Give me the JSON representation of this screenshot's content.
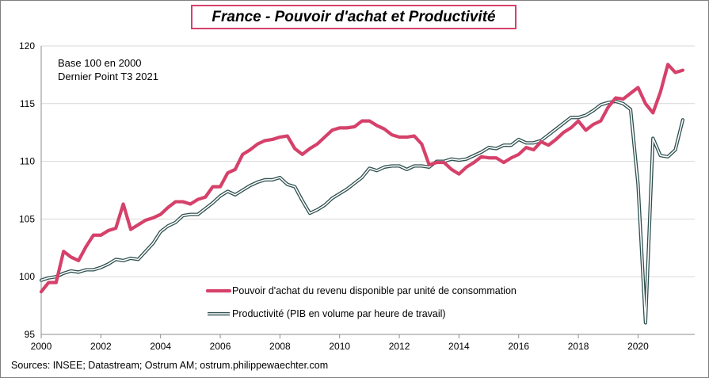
{
  "title": "France - Pouvoir d'achat et Productivité",
  "source_text": "Sources: INSEE; Datastream; Ostrum AM; ostrum.philippewaechter.com",
  "chart_data": {
    "type": "line",
    "annotations": [
      "Base 100 en 2000",
      "Dernier Point T3 2021"
    ],
    "xlim": [
      2000,
      2021.9
    ],
    "ylim": [
      95,
      120
    ],
    "x_ticks": [
      "2000",
      "2002",
      "2004",
      "2006",
      "2008",
      "2010",
      "2012",
      "2014",
      "2016",
      "2018",
      "2020"
    ],
    "y_ticks": [
      "95",
      "100",
      "105",
      "110",
      "115",
      "120"
    ],
    "grid": "horizontal",
    "legend_position": "lower-center",
    "series": [
      {
        "name": "Pouvoir d'achat du revenu disponible par unité de consommation",
        "color": "#d5416a",
        "style": "thick",
        "x": [
          2000.0,
          2000.25,
          2000.5,
          2000.75,
          2001.0,
          2001.25,
          2001.5,
          2001.75,
          2002.0,
          2002.25,
          2002.5,
          2002.75,
          2003.0,
          2003.25,
          2003.5,
          2003.75,
          2004.0,
          2004.25,
          2004.5,
          2004.75,
          2005.0,
          2005.25,
          2005.5,
          2005.75,
          2006.0,
          2006.25,
          2006.5,
          2006.75,
          2007.0,
          2007.25,
          2007.5,
          2007.75,
          2008.0,
          2008.25,
          2008.5,
          2008.75,
          2009.0,
          2009.25,
          2009.5,
          2009.75,
          2010.0,
          2010.25,
          2010.5,
          2010.75,
          2011.0,
          2011.25,
          2011.5,
          2011.75,
          2012.0,
          2012.25,
          2012.5,
          2012.75,
          2013.0,
          2013.25,
          2013.5,
          2013.75,
          2014.0,
          2014.25,
          2014.5,
          2014.75,
          2015.0,
          2015.25,
          2015.5,
          2015.75,
          2016.0,
          2016.25,
          2016.5,
          2016.75,
          2017.0,
          2017.25,
          2017.5,
          2017.75,
          2018.0,
          2018.25,
          2018.5,
          2018.75,
          2019.0,
          2019.25,
          2019.5,
          2019.75,
          2020.0,
          2020.25,
          2020.5,
          2020.75,
          2021.0,
          2021.25,
          2021.5
        ],
        "y": [
          98.7,
          99.5,
          99.5,
          102.2,
          101.7,
          101.4,
          102.6,
          103.6,
          103.6,
          104.0,
          104.2,
          106.3,
          104.1,
          104.5,
          104.9,
          105.1,
          105.4,
          106.0,
          106.5,
          106.5,
          106.3,
          106.7,
          106.9,
          107.8,
          107.8,
          109.0,
          109.3,
          110.6,
          111.0,
          111.5,
          111.8,
          111.9,
          112.1,
          112.2,
          111.1,
          110.6,
          111.1,
          111.5,
          112.1,
          112.7,
          112.9,
          112.9,
          113.0,
          113.5,
          113.5,
          113.1,
          112.8,
          112.3,
          112.1,
          112.1,
          112.2,
          111.5,
          109.7,
          109.9,
          109.9,
          109.3,
          108.9,
          109.5,
          109.9,
          110.4,
          110.3,
          110.3,
          109.9,
          110.3,
          110.6,
          111.2,
          111.0,
          111.7,
          111.4,
          111.9,
          112.5,
          112.9,
          113.5,
          112.7,
          113.2,
          113.5,
          114.7,
          115.5,
          115.4,
          115.9,
          116.4,
          115.0,
          114.2,
          116.0,
          118.4,
          117.7,
          117.9
        ]
      },
      {
        "name": "Productivité (PIB en volume par heure de travail)",
        "color": "#2f4f4f",
        "style": "outlined",
        "x": [
          2000.0,
          2000.25,
          2000.5,
          2000.75,
          2001.0,
          2001.25,
          2001.5,
          2001.75,
          2002.0,
          2002.25,
          2002.5,
          2002.75,
          2003.0,
          2003.25,
          2003.5,
          2003.75,
          2004.0,
          2004.25,
          2004.5,
          2004.75,
          2005.0,
          2005.25,
          2005.5,
          2005.75,
          2006.0,
          2006.25,
          2006.5,
          2006.75,
          2007.0,
          2007.25,
          2007.5,
          2007.75,
          2008.0,
          2008.25,
          2008.5,
          2008.75,
          2009.0,
          2009.25,
          2009.5,
          2009.75,
          2010.0,
          2010.25,
          2010.5,
          2010.75,
          2011.0,
          2011.25,
          2011.5,
          2011.75,
          2012.0,
          2012.25,
          2012.5,
          2012.75,
          2013.0,
          2013.25,
          2013.5,
          2013.75,
          2014.0,
          2014.25,
          2014.5,
          2014.75,
          2015.0,
          2015.25,
          2015.5,
          2015.75,
          2016.0,
          2016.25,
          2016.5,
          2016.75,
          2017.0,
          2017.25,
          2017.5,
          2017.75,
          2018.0,
          2018.25,
          2018.5,
          2018.75,
          2019.0,
          2019.25,
          2019.5,
          2019.75,
          2020.0,
          2020.25,
          2020.5,
          2020.75,
          2021.0,
          2021.25,
          2021.5
        ],
        "y": [
          99.7,
          99.9,
          100.0,
          100.3,
          100.5,
          100.4,
          100.6,
          100.6,
          100.8,
          101.1,
          101.5,
          101.4,
          101.6,
          101.5,
          102.2,
          102.9,
          103.9,
          104.4,
          104.7,
          105.3,
          105.4,
          105.4,
          105.9,
          106.4,
          107.0,
          107.4,
          107.1,
          107.5,
          107.9,
          108.2,
          108.4,
          108.4,
          108.6,
          108.0,
          107.8,
          106.6,
          105.5,
          105.8,
          106.2,
          106.8,
          107.2,
          107.6,
          108.1,
          108.6,
          109.4,
          109.2,
          109.5,
          109.6,
          109.6,
          109.3,
          109.6,
          109.6,
          109.5,
          110.0,
          110.0,
          110.2,
          110.1,
          110.2,
          110.5,
          110.8,
          111.2,
          111.1,
          111.4,
          111.4,
          111.9,
          111.6,
          111.6,
          111.8,
          112.3,
          112.8,
          113.3,
          113.8,
          113.8,
          114.0,
          114.4,
          114.9,
          115.1,
          115.2,
          115.0,
          114.5,
          108.0,
          96.0,
          112.0,
          110.5,
          110.4,
          111.0,
          113.6
        ]
      }
    ]
  }
}
